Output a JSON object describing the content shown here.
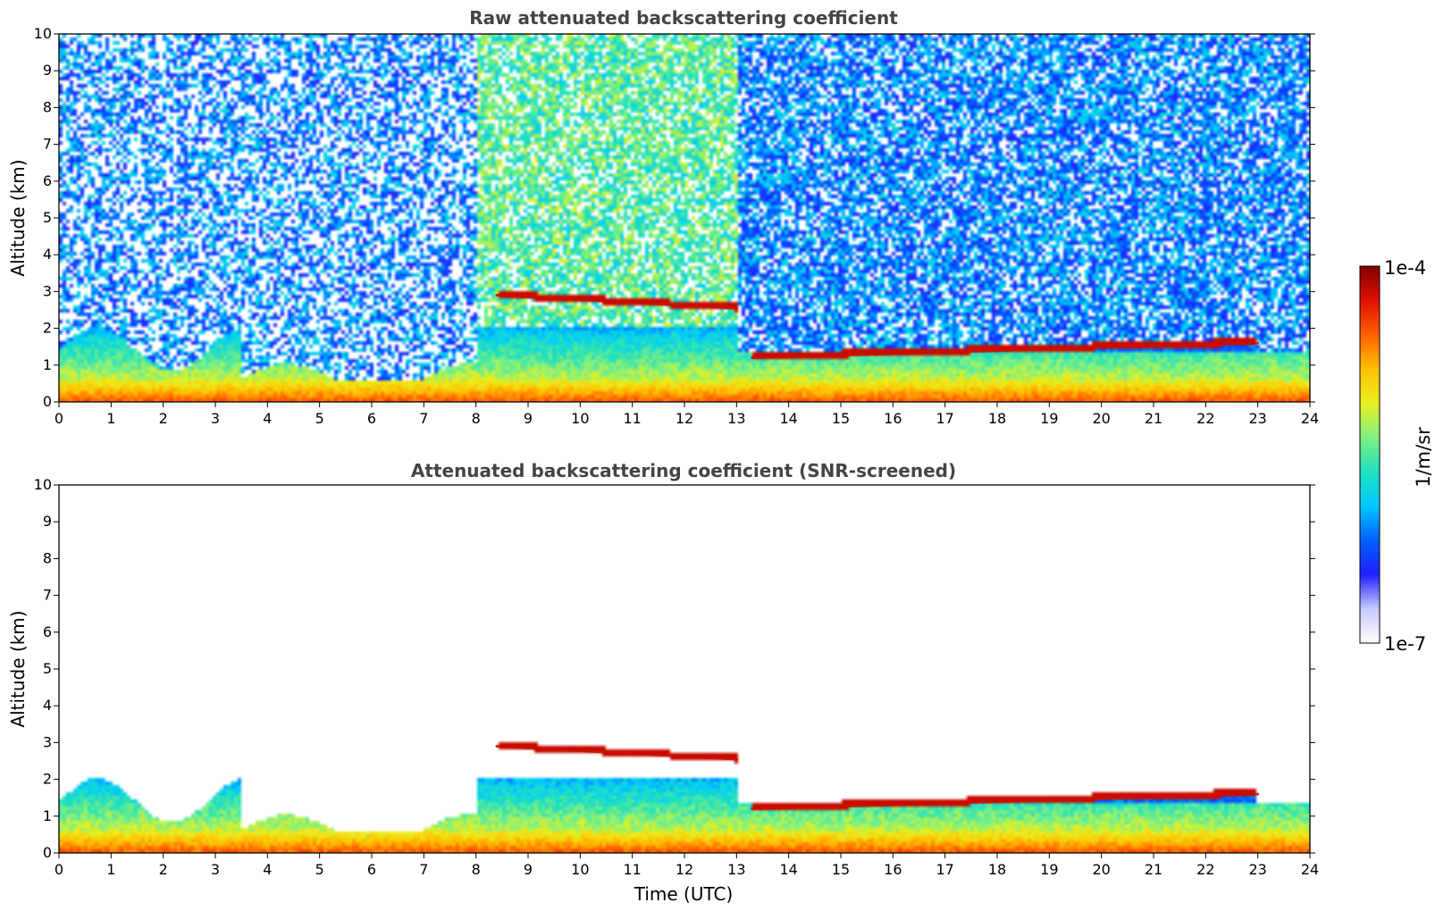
{
  "chart_data": [
    {
      "type": "heatmap",
      "title": "Raw attenuated backscattering coefficient",
      "xlabel": "",
      "ylabel": "Altitude (km)",
      "xlim": [
        0,
        24
      ],
      "ylim": [
        0,
        10
      ],
      "xticks": [
        "0",
        "1",
        "2",
        "3",
        "4",
        "5",
        "6",
        "7",
        "8",
        "9",
        "10",
        "11",
        "12",
        "13",
        "14",
        "15",
        "16",
        "17",
        "18",
        "19",
        "20",
        "21",
        "22",
        "23",
        "24"
      ],
      "yticks": [
        "0",
        "1",
        "2",
        "3",
        "4",
        "5",
        "6",
        "7",
        "8",
        "9",
        "10"
      ],
      "variant": "raw",
      "cloud_layers": [
        {
          "start": 8.4,
          "end": 13.0,
          "altitude_start": 2.9,
          "altitude_end": 2.55
        },
        {
          "start": 13.3,
          "end": 23.0,
          "altitude_start": 1.2,
          "altitude_end": 1.6
        }
      ]
    },
    {
      "type": "heatmap",
      "title": "Attenuated backscattering coefficient (SNR-screened)",
      "xlabel": "Time (UTC)",
      "ylabel": "Altitude (km)",
      "xlim": [
        0,
        24
      ],
      "ylim": [
        0,
        10
      ],
      "xticks": [
        "0",
        "1",
        "2",
        "3",
        "4",
        "5",
        "6",
        "7",
        "8",
        "9",
        "10",
        "11",
        "12",
        "13",
        "14",
        "15",
        "16",
        "17",
        "18",
        "19",
        "20",
        "21",
        "22",
        "23",
        "24"
      ],
      "yticks": [
        "0",
        "1",
        "2",
        "3",
        "4",
        "5",
        "6",
        "7",
        "8",
        "9",
        "10"
      ],
      "variant": "screened",
      "cloud_layers": [
        {
          "start": 8.4,
          "end": 13.0,
          "altitude_start": 2.9,
          "altitude_end": 2.55
        },
        {
          "start": 13.3,
          "end": 23.0,
          "altitude_start": 1.2,
          "altitude_end": 1.6
        }
      ]
    }
  ],
  "colorbar": {
    "max_label": "1e-4",
    "min_label": "1e-7",
    "unit_label": "1/m/sr",
    "range": [
      1e-07,
      0.0001
    ],
    "colors": [
      "#ffffff",
      "#c8c8ff",
      "#2020ff",
      "#0060ff",
      "#00c8ff",
      "#20e0c0",
      "#80f080",
      "#e8f020",
      "#ffc000",
      "#ff6000",
      "#e01000",
      "#800000"
    ]
  }
}
